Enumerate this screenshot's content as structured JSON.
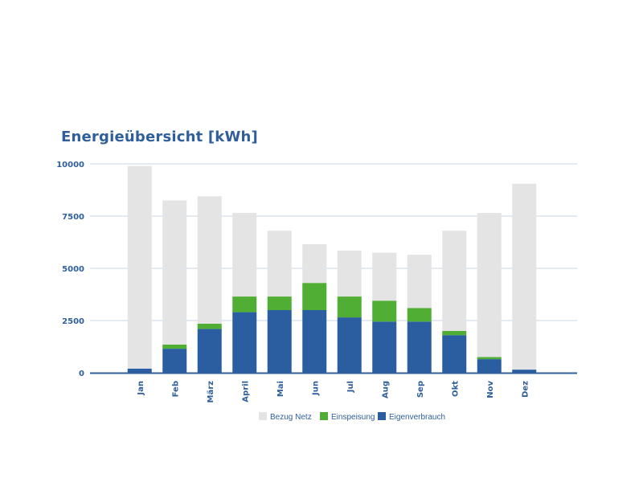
{
  "chart_data": {
    "type": "bar",
    "stacked": true,
    "title": "Energieübersicht [kWh]",
    "xlabel": "",
    "ylabel": "",
    "categories": [
      "Jan",
      "Feb",
      "März",
      "April",
      "Mai",
      "Jun",
      "Jul",
      "Aug",
      "Sep",
      "Okt",
      "Nov",
      "Dez"
    ],
    "series": [
      {
        "name": "Eigenverbrauch",
        "color": "#2a5ea0",
        "values": [
          200,
          1150,
          2100,
          2900,
          3000,
          3000,
          2650,
          2450,
          2450,
          1800,
          650,
          150
        ]
      },
      {
        "name": "Einspeisung",
        "color": "#4fae33",
        "values": [
          0,
          200,
          250,
          750,
          650,
          1300,
          1000,
          1000,
          650,
          200,
          100,
          0
        ]
      },
      {
        "name": "Bezug Netz",
        "color": "#e4e4e4",
        "values": [
          9700,
          6900,
          6100,
          4000,
          3150,
          1850,
          2200,
          2300,
          2550,
          4800,
          6900,
          8900
        ]
      }
    ],
    "legend_order": [
      "Bezug Netz",
      "Einspeisung",
      "Eigenverbrauch"
    ],
    "yticks": [
      0,
      2500,
      5000,
      7500,
      10000
    ],
    "ylim": [
      0,
      10000
    ],
    "grid": true,
    "legend_position": "bottom-center",
    "gridline_color": "#c7d6e6",
    "axis_color": "#2f5f9a"
  }
}
